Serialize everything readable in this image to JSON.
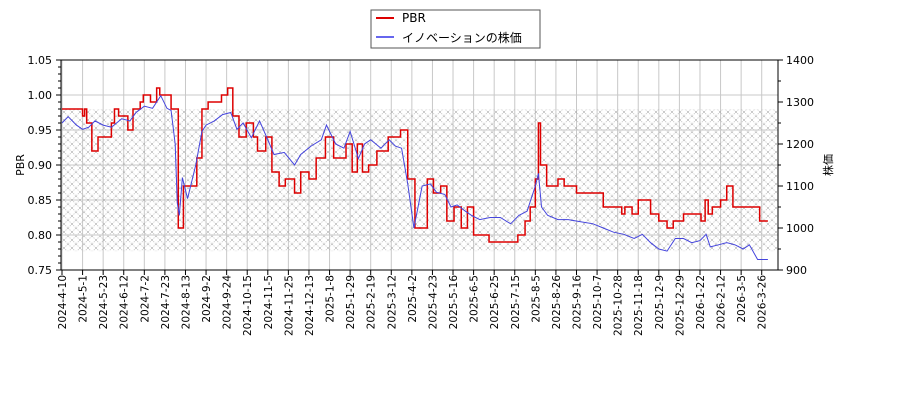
{
  "chart_data": {
    "type": "line",
    "title": "",
    "legend": {
      "position": "top-center",
      "entries": [
        {
          "label": "PBR",
          "color": "#dd0000"
        },
        {
          "label": "イノベーションの株価",
          "color": "#4444dd"
        }
      ]
    },
    "xlabel": "",
    "ylabel_left": "PBR",
    "ylabel_right": "株価",
    "ylim_left": [
      0.75,
      1.05
    ],
    "ylim_right": [
      900,
      1400
    ],
    "yticks_left": [
      "0.75",
      "0.80",
      "0.85",
      "0.90",
      "0.95",
      "1.00",
      "1.05"
    ],
    "yticks_right": [
      "900",
      "1000",
      "1100",
      "1200",
      "1300",
      "1400"
    ],
    "grid": true,
    "hatched_band_pbr": [
      0.777,
      0.98
    ],
    "x_tick_labels": [
      "2024-4-10",
      "2024-5-1",
      "2024-5-23",
      "2024-6-12",
      "2024-7-2",
      "2024-7-23",
      "2024-8-13",
      "2024-9-2",
      "2024-9-24",
      "2024-10-15",
      "2024-11-5",
      "2024-11-25",
      "2024-12-13",
      "2025-1-8",
      "2025-1-29",
      "2025-2-19",
      "2025-3-12",
      "2025-4-2",
      "2025-4-23",
      "2025-5-16",
      "2025-6-5",
      "2025-6-25",
      "2025-7-15",
      "2025-8-5",
      "2025-8-26",
      "2025-9-16",
      "2025-10-7",
      "2025-10-28",
      "2025-11-18",
      "2025-12-9",
      "2025-12-29",
      "2026-1-22",
      "2026-2-12",
      "2026-3-5",
      "2026-3-26"
    ],
    "series": [
      {
        "name": "PBR",
        "axis": "left",
        "color": "#dd0000",
        "step": true,
        "points": [
          [
            0,
            0.98
          ],
          [
            0.9,
            0.98
          ],
          [
            1.0,
            0.97
          ],
          [
            1.1,
            0.98
          ],
          [
            1.2,
            0.96
          ],
          [
            1.45,
            0.92
          ],
          [
            1.75,
            0.94
          ],
          [
            2.4,
            0.96
          ],
          [
            2.55,
            0.98
          ],
          [
            2.75,
            0.97
          ],
          [
            3.2,
            0.95
          ],
          [
            3.45,
            0.98
          ],
          [
            3.8,
            0.99
          ],
          [
            3.95,
            1.0
          ],
          [
            4.3,
            0.99
          ],
          [
            4.6,
            1.01
          ],
          [
            4.75,
            1.0
          ],
          [
            5.3,
            0.98
          ],
          [
            5.65,
            0.81
          ],
          [
            5.9,
            0.87
          ],
          [
            6.55,
            0.91
          ],
          [
            6.8,
            0.98
          ],
          [
            7.1,
            0.99
          ],
          [
            7.75,
            1.0
          ],
          [
            8.05,
            1.01
          ],
          [
            8.3,
            0.97
          ],
          [
            8.6,
            0.94
          ],
          [
            8.95,
            0.96
          ],
          [
            9.3,
            0.94
          ],
          [
            9.5,
            0.92
          ],
          [
            9.9,
            0.94
          ],
          [
            10.2,
            0.89
          ],
          [
            10.55,
            0.87
          ],
          [
            10.85,
            0.88
          ],
          [
            11.3,
            0.86
          ],
          [
            11.6,
            0.89
          ],
          [
            12.0,
            0.88
          ],
          [
            12.35,
            0.91
          ],
          [
            12.8,
            0.94
          ],
          [
            13.2,
            0.91
          ],
          [
            13.8,
            0.93
          ],
          [
            14.1,
            0.89
          ],
          [
            14.35,
            0.93
          ],
          [
            14.6,
            0.89
          ],
          [
            14.9,
            0.9
          ],
          [
            15.3,
            0.92
          ],
          [
            15.85,
            0.94
          ],
          [
            16.45,
            0.95
          ],
          [
            16.8,
            0.88
          ],
          [
            17.15,
            0.81
          ],
          [
            17.75,
            0.88
          ],
          [
            18.05,
            0.86
          ],
          [
            18.4,
            0.87
          ],
          [
            18.7,
            0.82
          ],
          [
            19.05,
            0.84
          ],
          [
            19.4,
            0.81
          ],
          [
            19.7,
            0.84
          ],
          [
            20.0,
            0.8
          ],
          [
            20.75,
            0.79
          ],
          [
            22.15,
            0.8
          ],
          [
            22.5,
            0.82
          ],
          [
            22.75,
            0.84
          ],
          [
            23.0,
            0.88
          ],
          [
            23.15,
            0.96
          ],
          [
            23.25,
            0.9
          ],
          [
            23.55,
            0.87
          ],
          [
            23.9,
            0.87
          ],
          [
            24.1,
            0.88
          ],
          [
            24.4,
            0.87
          ],
          [
            25.0,
            0.86
          ],
          [
            26.3,
            0.84
          ],
          [
            27.2,
            0.83
          ],
          [
            27.35,
            0.84
          ],
          [
            27.7,
            0.83
          ],
          [
            28.0,
            0.85
          ],
          [
            28.6,
            0.83
          ],
          [
            29.0,
            0.82
          ],
          [
            29.4,
            0.81
          ],
          [
            29.7,
            0.82
          ],
          [
            30.2,
            0.83
          ],
          [
            31.05,
            0.82
          ],
          [
            31.25,
            0.85
          ],
          [
            31.4,
            0.83
          ],
          [
            31.6,
            0.84
          ],
          [
            32.0,
            0.85
          ],
          [
            32.3,
            0.87
          ],
          [
            32.6,
            0.84
          ],
          [
            33.9,
            0.82
          ],
          [
            34.3,
            0.82
          ]
        ]
      },
      {
        "name": "イノベーションの株価",
        "axis": "right",
        "color": "#4444dd",
        "step": false,
        "points": [
          [
            0,
            1250
          ],
          [
            0.3,
            1265
          ],
          [
            0.7,
            1245
          ],
          [
            1.0,
            1235
          ],
          [
            1.3,
            1240
          ],
          [
            1.6,
            1255
          ],
          [
            2.0,
            1245
          ],
          [
            2.4,
            1240
          ],
          [
            2.9,
            1260
          ],
          [
            3.3,
            1255
          ],
          [
            3.6,
            1275
          ],
          [
            4.0,
            1290
          ],
          [
            4.4,
            1285
          ],
          [
            4.8,
            1315
          ],
          [
            5.1,
            1285
          ],
          [
            5.3,
            1280
          ],
          [
            5.5,
            1200
          ],
          [
            5.6,
            1060
          ],
          [
            5.7,
            1030
          ],
          [
            5.85,
            1120
          ],
          [
            6.1,
            1070
          ],
          [
            6.5,
            1150
          ],
          [
            6.8,
            1230
          ],
          [
            7.0,
            1245
          ],
          [
            7.4,
            1255
          ],
          [
            7.8,
            1270
          ],
          [
            8.2,
            1275
          ],
          [
            8.5,
            1235
          ],
          [
            8.8,
            1250
          ],
          [
            9.2,
            1215
          ],
          [
            9.6,
            1255
          ],
          [
            10.0,
            1210
          ],
          [
            10.3,
            1175
          ],
          [
            10.8,
            1180
          ],
          [
            11.3,
            1150
          ],
          [
            11.6,
            1175
          ],
          [
            12.1,
            1195
          ],
          [
            12.6,
            1210
          ],
          [
            12.85,
            1245
          ],
          [
            13.3,
            1200
          ],
          [
            13.7,
            1190
          ],
          [
            14.0,
            1230
          ],
          [
            14.4,
            1165
          ],
          [
            14.7,
            1200
          ],
          [
            15.0,
            1210
          ],
          [
            15.5,
            1190
          ],
          [
            15.9,
            1210
          ],
          [
            16.2,
            1195
          ],
          [
            16.5,
            1190
          ],
          [
            16.8,
            1105
          ],
          [
            17.1,
            1000
          ],
          [
            17.5,
            1100
          ],
          [
            17.9,
            1105
          ],
          [
            18.2,
            1085
          ],
          [
            18.6,
            1080
          ],
          [
            18.9,
            1050
          ],
          [
            19.2,
            1055
          ],
          [
            19.6,
            1040
          ],
          [
            19.9,
            1030
          ],
          [
            20.3,
            1020
          ],
          [
            20.8,
            1025
          ],
          [
            21.3,
            1025
          ],
          [
            21.8,
            1010
          ],
          [
            22.2,
            1030
          ],
          [
            22.6,
            1040
          ],
          [
            23.0,
            1100
          ],
          [
            23.15,
            1130
          ],
          [
            23.3,
            1050
          ],
          [
            23.6,
            1030
          ],
          [
            24.1,
            1020
          ],
          [
            24.6,
            1020
          ],
          [
            25.2,
            1015
          ],
          [
            25.8,
            1010
          ],
          [
            26.3,
            1000
          ],
          [
            26.8,
            990
          ],
          [
            27.3,
            985
          ],
          [
            27.8,
            975
          ],
          [
            28.2,
            985
          ],
          [
            28.6,
            965
          ],
          [
            29.0,
            950
          ],
          [
            29.4,
            945
          ],
          [
            29.8,
            975
          ],
          [
            30.2,
            975
          ],
          [
            30.6,
            965
          ],
          [
            31.0,
            970
          ],
          [
            31.3,
            985
          ],
          [
            31.5,
            955
          ],
          [
            31.9,
            960
          ],
          [
            32.3,
            965
          ],
          [
            32.7,
            960
          ],
          [
            33.1,
            950
          ],
          [
            33.4,
            960
          ],
          [
            33.8,
            925
          ],
          [
            34.3,
            925
          ]
        ]
      }
    ]
  }
}
